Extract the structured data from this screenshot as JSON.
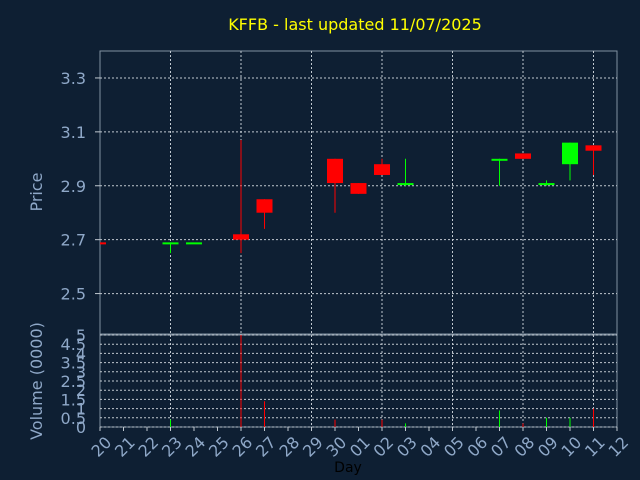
{
  "chart_data": [
    {
      "type": "candlestick",
      "title": "KFFB - last updated 11/07/2025",
      "ylabel": "Price",
      "ylim": [
        2.35,
        3.4
      ],
      "yticks": [
        "2.5",
        "2.7",
        "2.9",
        "3.1",
        "3.3"
      ],
      "xlabel": "Day",
      "xticks": [
        "20",
        "21",
        "22",
        "23",
        "24",
        "25",
        "26",
        "27",
        "28",
        "29",
        "30",
        "01",
        "02",
        "03",
        "04",
        "05",
        "06",
        "07",
        "08",
        "09",
        "10",
        "11",
        "12"
      ],
      "grid": true,
      "colors": {
        "up": "#00ff00",
        "down": "#ff0000",
        "title": "#ffff00",
        "axis_text": "#8fa8c8",
        "grid": "#c0c8d0"
      },
      "candles": [
        {
          "day": "20",
          "open": 2.69,
          "close": 2.69,
          "high": 2.69,
          "low": 2.69,
          "dir": "down"
        },
        {
          "day": "23",
          "open": 2.69,
          "close": 2.69,
          "high": 2.69,
          "low": 2.65,
          "dir": "up"
        },
        {
          "day": "24",
          "open": 2.69,
          "close": 2.69,
          "high": 2.69,
          "low": 2.69,
          "dir": "up"
        },
        {
          "day": "26",
          "open": 2.72,
          "close": 2.7,
          "high": 3.07,
          "low": 2.65,
          "dir": "down"
        },
        {
          "day": "27",
          "open": 2.85,
          "close": 2.8,
          "high": 2.85,
          "low": 2.74,
          "dir": "down"
        },
        {
          "day": "30",
          "open": 3.0,
          "close": 2.91,
          "high": 3.0,
          "low": 2.8,
          "dir": "down"
        },
        {
          "day": "01",
          "open": 2.91,
          "close": 2.87,
          "high": 2.91,
          "low": 2.87,
          "dir": "down"
        },
        {
          "day": "02",
          "open": 2.98,
          "close": 2.94,
          "high": 3.0,
          "low": 2.94,
          "dir": "down"
        },
        {
          "day": "03",
          "open": 2.91,
          "close": 2.91,
          "high": 3.0,
          "low": 2.9,
          "dir": "up"
        },
        {
          "day": "07",
          "open": 3.0,
          "close": 3.0,
          "high": 3.0,
          "low": 2.9,
          "dir": "up"
        },
        {
          "day": "08",
          "open": 3.02,
          "close": 3.0,
          "high": 3.02,
          "low": 3.0,
          "dir": "down"
        },
        {
          "day": "09",
          "open": 2.91,
          "close": 2.91,
          "high": 2.92,
          "low": 2.9,
          "dir": "up"
        },
        {
          "day": "10",
          "open": 2.98,
          "close": 3.06,
          "high": 3.06,
          "low": 2.92,
          "dir": "up"
        },
        {
          "day": "11",
          "open": 3.05,
          "close": 3.03,
          "high": 3.05,
          "low": 2.94,
          "dir": "down"
        }
      ]
    },
    {
      "type": "bar",
      "ylabel": "Volume (0000)",
      "ylim": [
        0,
        5
      ],
      "yticks": [
        "0",
        "0.5",
        "1",
        "1.5",
        "2",
        "2.5",
        "3",
        "3.5",
        "4",
        "4.5",
        "5"
      ],
      "grid": true,
      "volumes": [
        {
          "day": "23",
          "value": 0.4,
          "dir": "up"
        },
        {
          "day": "26",
          "value": 5.0,
          "dir": "down"
        },
        {
          "day": "27",
          "value": 1.4,
          "dir": "down"
        },
        {
          "day": "30",
          "value": 0.4,
          "dir": "down"
        },
        {
          "day": "02",
          "value": 0.4,
          "dir": "down"
        },
        {
          "day": "03",
          "value": 0.2,
          "dir": "up"
        },
        {
          "day": "07",
          "value": 0.9,
          "dir": "up"
        },
        {
          "day": "08",
          "value": 0.2,
          "dir": "down"
        },
        {
          "day": "09",
          "value": 0.5,
          "dir": "up"
        },
        {
          "day": "10",
          "value": 0.5,
          "dir": "up"
        },
        {
          "day": "11",
          "value": 1.0,
          "dir": "down"
        }
      ]
    }
  ]
}
